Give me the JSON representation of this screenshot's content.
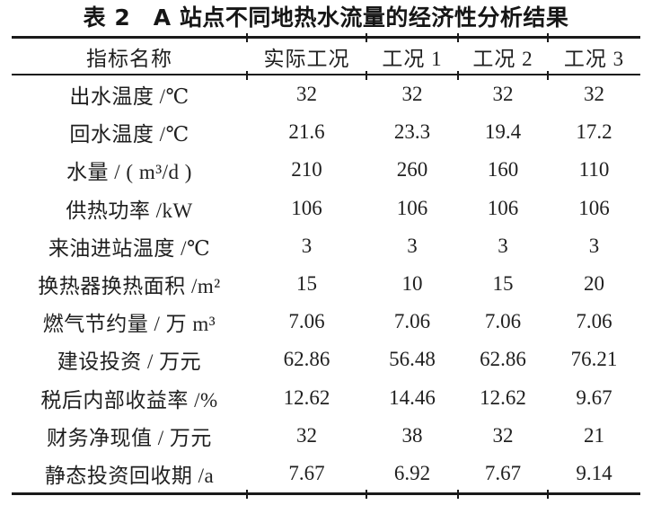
{
  "page": {
    "background": "#ffffff",
    "text_color": "#1c1c1c",
    "rule_color": "#1a1a1a"
  },
  "caption": "表 2　A 站点不同地热水流量的经济性分析结果",
  "table": {
    "columns": [
      "指标名称",
      "实际工况",
      "工况 1",
      "工况 2",
      "工况 3"
    ],
    "rows": [
      {
        "label": "出水温度 /℃",
        "values": [
          "32",
          "32",
          "32",
          "32"
        ]
      },
      {
        "label": "回水温度 /℃",
        "values": [
          "21.6",
          "23.3",
          "19.4",
          "17.2"
        ]
      },
      {
        "label": "水量 / ( m³/d )",
        "values": [
          "210",
          "260",
          "160",
          "110"
        ]
      },
      {
        "label": "供热功率 /kW",
        "values": [
          "106",
          "106",
          "106",
          "106"
        ]
      },
      {
        "label": "来油进站温度 /℃",
        "values": [
          "3",
          "3",
          "3",
          "3"
        ]
      },
      {
        "label": "换热器换热面积 /m²",
        "values": [
          "15",
          "10",
          "15",
          "20"
        ]
      },
      {
        "label": "燃气节约量 / 万 m³",
        "values": [
          "7.06",
          "7.06",
          "7.06",
          "7.06"
        ]
      },
      {
        "label": "建设投资 / 万元",
        "values": [
          "62.86",
          "56.48",
          "62.86",
          "76.21"
        ]
      },
      {
        "label": "税后内部收益率 /%",
        "values": [
          "12.62",
          "14.46",
          "12.62",
          "9.67"
        ]
      },
      {
        "label": "财务净现值 / 万元",
        "values": [
          "32",
          "38",
          "32",
          "21"
        ]
      },
      {
        "label": "静态投资回收期 /a",
        "values": [
          "7.67",
          "6.92",
          "7.67",
          "9.14"
        ]
      }
    ]
  }
}
